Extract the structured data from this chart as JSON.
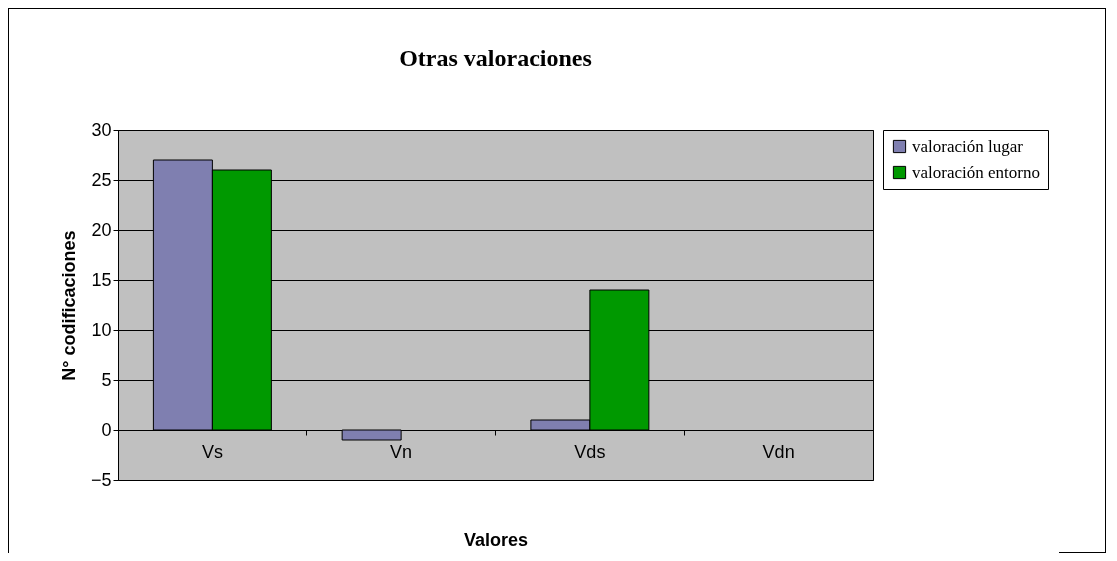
{
  "chart_data": {
    "type": "bar",
    "title": "Otras valoraciones",
    "xlabel": "Valores",
    "ylabel": "N° codificaciones",
    "categories": [
      "Vs",
      "Vn",
      "Vds",
      "Vdn"
    ],
    "series": [
      {
        "name": "valoración lugar",
        "color": "#7f7fb0",
        "values": [
          27,
          -1,
          1,
          null
        ]
      },
      {
        "name": "valoración entorno",
        "color": "#009900",
        "values": [
          26,
          null,
          14,
          null
        ]
      }
    ],
    "ylim": [
      -5,
      30
    ],
    "yticks": [
      -5,
      0,
      5,
      10,
      15,
      20,
      25,
      30
    ],
    "grid": "y",
    "legend": "right"
  }
}
